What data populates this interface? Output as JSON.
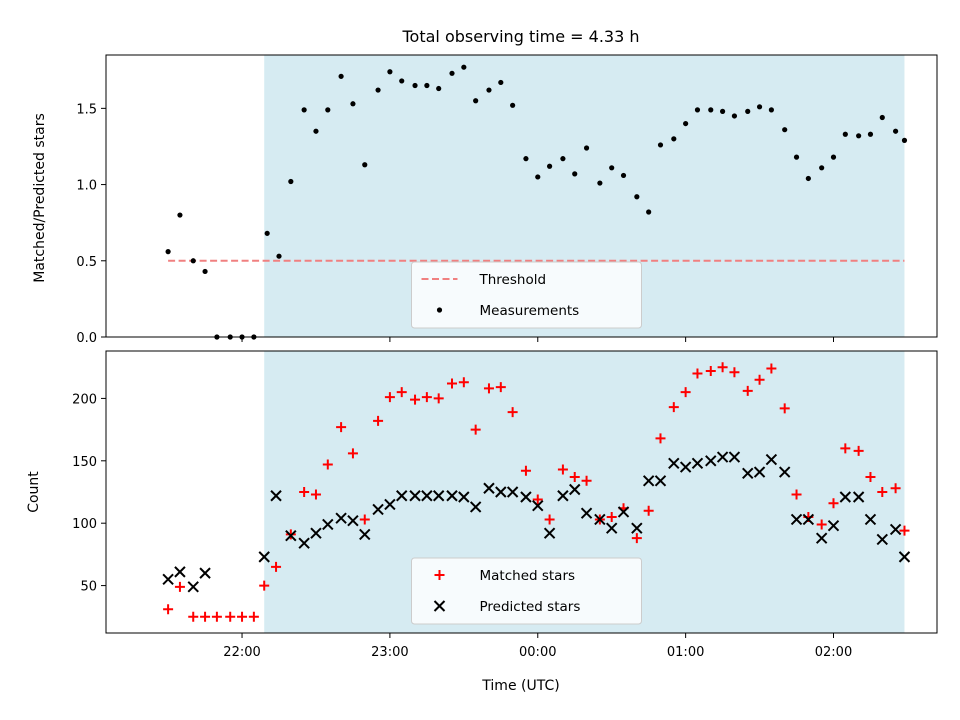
{
  "chart_data": [
    {
      "type": "scatter",
      "title": "Total observing time = 4.33 h",
      "xlabel": "",
      "ylabel": "Matched/Predicted stars",
      "ylim": [
        0,
        1.85
      ],
      "yticks": [
        0.0,
        0.5,
        1.0,
        1.5
      ],
      "ytick_labels": [
        "0.0",
        "0.5",
        "1.0",
        "1.5"
      ],
      "xlim_hours": [
        21.08,
        26.7
      ],
      "shaded_span_hours": [
        22.15,
        26.48
      ],
      "shade_color": "#add8e6",
      "threshold": {
        "name": "Threshold",
        "value": 0.5,
        "x_range_hours": [
          21.5,
          26.48
        ],
        "color": "#f08080"
      },
      "legend": {
        "location": "lower center",
        "entries": [
          "Threshold",
          "Measurements"
        ]
      },
      "series": [
        {
          "name": "Measurements",
          "color": "#000000",
          "x_hours": [
            21.5,
            21.58,
            21.67,
            21.75,
            21.83,
            21.92,
            22.0,
            22.08,
            22.17,
            22.25,
            22.33,
            22.42,
            22.5,
            22.58,
            22.67,
            22.75,
            22.83,
            22.92,
            23.0,
            23.08,
            23.17,
            23.25,
            23.33,
            23.42,
            23.5,
            23.58,
            23.67,
            23.75,
            23.83,
            23.92,
            24.0,
            24.08,
            24.17,
            24.25,
            24.33,
            24.42,
            24.5,
            24.58,
            24.67,
            24.75,
            24.83,
            24.92,
            25.0,
            25.08,
            25.17,
            25.25,
            25.33,
            25.42,
            25.5,
            25.58,
            25.67,
            25.75,
            25.83,
            25.92,
            26.0,
            26.08,
            26.17,
            26.25,
            26.33,
            26.42,
            26.48
          ],
          "y": [
            0.56,
            0.8,
            0.5,
            0.43,
            0.0,
            0.0,
            0.0,
            0.0,
            0.68,
            0.53,
            1.02,
            1.49,
            1.35,
            1.49,
            1.71,
            1.53,
            1.13,
            1.62,
            1.74,
            1.68,
            1.65,
            1.65,
            1.63,
            1.73,
            1.77,
            1.55,
            1.62,
            1.67,
            1.52,
            1.17,
            1.05,
            1.12,
            1.17,
            1.07,
            1.24,
            1.01,
            1.11,
            1.06,
            0.92,
            0.82,
            1.26,
            1.3,
            1.4,
            1.49,
            1.49,
            1.48,
            1.45,
            1.48,
            1.51,
            1.49,
            1.36,
            1.18,
            1.04,
            1.11,
            1.18,
            1.33,
            1.32,
            1.33,
            1.44,
            1.35,
            1.29
          ]
        }
      ]
    },
    {
      "type": "scatter",
      "title": "",
      "xlabel": "Time (UTC)",
      "ylabel": "Count",
      "ylim": [
        12,
        238
      ],
      "yticks": [
        50,
        100,
        150,
        200
      ],
      "ytick_labels": [
        "50",
        "100",
        "150",
        "200"
      ],
      "xlim_hours": [
        21.08,
        26.7
      ],
      "xticks_hours": [
        22,
        23,
        24,
        25,
        26
      ],
      "xtick_labels": [
        "22:00",
        "23:00",
        "00:00",
        "01:00",
        "02:00"
      ],
      "shaded_span_hours": [
        22.15,
        26.48
      ],
      "shade_color": "#add8e6",
      "legend": {
        "location": "lower center",
        "entries": [
          "Matched stars",
          "Predicted stars"
        ]
      },
      "series": [
        {
          "name": "Matched stars",
          "marker": "plus",
          "color": "#ff0000",
          "x_hours": [
            21.5,
            21.58,
            21.67,
            21.75,
            21.83,
            21.92,
            22.0,
            22.08,
            22.15,
            22.23,
            22.33,
            22.42,
            22.5,
            22.58,
            22.67,
            22.75,
            22.83,
            22.92,
            23.0,
            23.08,
            23.17,
            23.25,
            23.33,
            23.42,
            23.5,
            23.58,
            23.67,
            23.75,
            23.83,
            23.92,
            24.0,
            24.08,
            24.17,
            24.25,
            24.33,
            24.42,
            24.5,
            24.58,
            24.67,
            24.75,
            24.83,
            24.92,
            25.0,
            25.08,
            25.17,
            25.25,
            25.33,
            25.42,
            25.5,
            25.58,
            25.67,
            25.75,
            25.83,
            25.92,
            26.0,
            26.08,
            26.17,
            26.25,
            26.33,
            26.42,
            26.48
          ],
          "y": [
            31,
            49,
            25,
            25,
            25,
            25,
            25,
            25,
            50,
            65,
            91,
            125,
            123,
            147,
            177,
            156,
            103,
            182,
            201,
            205,
            199,
            201,
            200,
            212,
            213,
            175,
            208,
            209,
            189,
            142,
            119,
            103,
            143,
            137,
            134,
            103,
            105,
            112,
            88,
            110,
            168,
            193,
            205,
            220,
            222,
            225,
            221,
            206,
            215,
            224,
            192,
            123,
            105,
            99,
            116,
            160,
            158,
            137,
            125,
            128,
            94
          ]
        },
        {
          "name": "Predicted stars",
          "marker": "x",
          "color": "#000000",
          "x_hours": [
            21.5,
            21.58,
            21.67,
            21.75,
            22.15,
            22.23,
            22.33,
            22.42,
            22.5,
            22.58,
            22.67,
            22.75,
            22.83,
            22.92,
            23.0,
            23.08,
            23.17,
            23.25,
            23.33,
            23.42,
            23.5,
            23.58,
            23.67,
            23.75,
            23.83,
            23.92,
            24.0,
            24.08,
            24.17,
            24.25,
            24.33,
            24.42,
            24.5,
            24.58,
            24.67,
            24.75,
            24.83,
            24.92,
            25.0,
            25.08,
            25.17,
            25.25,
            25.33,
            25.42,
            25.5,
            25.58,
            25.67,
            25.75,
            25.83,
            25.92,
            26.0,
            26.08,
            26.17,
            26.25,
            26.33,
            26.42,
            26.48
          ],
          "y": [
            55,
            61,
            49,
            60,
            73,
            122,
            90,
            84,
            92,
            99,
            104,
            102,
            91,
            111,
            115,
            122,
            122,
            122,
            122,
            122,
            121,
            113,
            128,
            125,
            125,
            121,
            114,
            92,
            122,
            127,
            108,
            103,
            96,
            109,
            96,
            134,
            134,
            148,
            145,
            148,
            150,
            153,
            153,
            140,
            141,
            151,
            141,
            103,
            103,
            88,
            98,
            121,
            121,
            103,
            87,
            95,
            73
          ]
        }
      ]
    }
  ]
}
